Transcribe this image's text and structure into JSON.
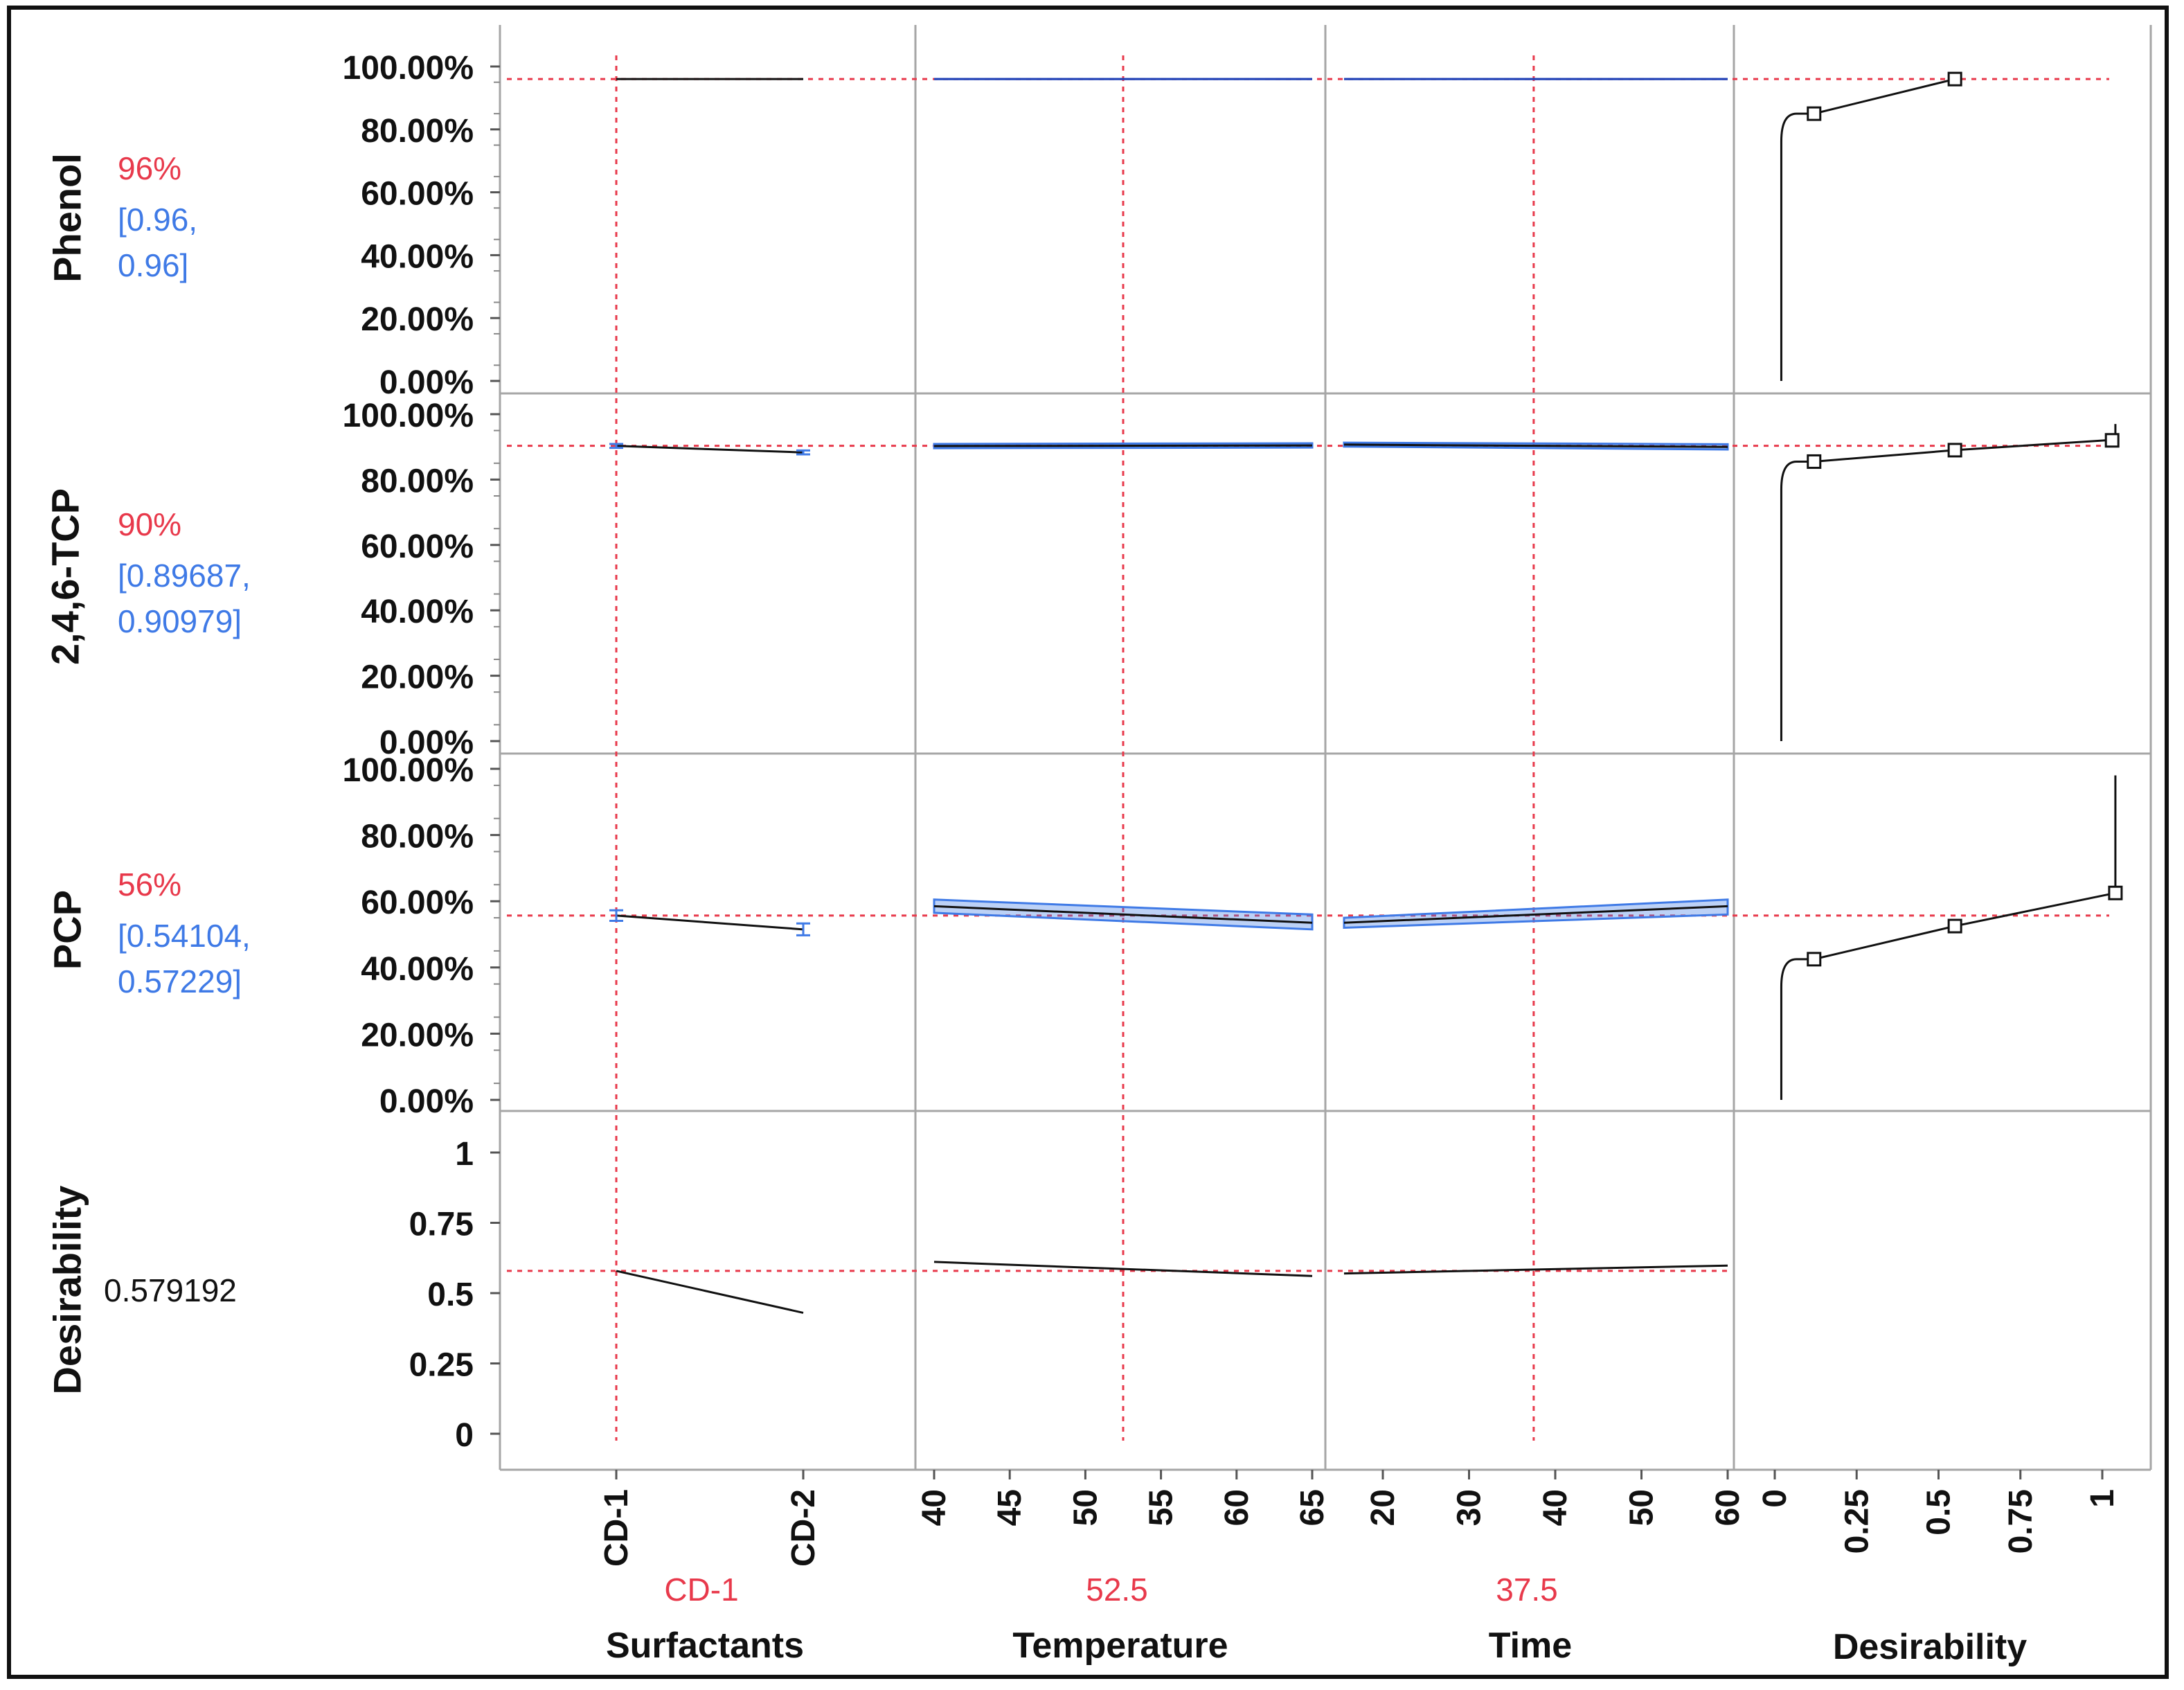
{
  "chart_data": {
    "type": "line",
    "title": "",
    "colors": {
      "prediction_line": "#111111",
      "confidence_band": "#3f7ae6",
      "reference_line": "#e8394b",
      "grid": "#a6a6a6"
    },
    "responses": [
      {
        "name": "Phenol",
        "current_value": "96%",
        "ci_text": [
          "[0.96,",
          "0.96]"
        ],
        "yticks": [
          "100.00%",
          "80.00%",
          "60.00%",
          "40.00%",
          "20.00%",
          "0.00%"
        ],
        "ylim": [
          0,
          1
        ],
        "current": 0.96
      },
      {
        "name": "2,4,6-TCP",
        "current_value": "90%",
        "ci_text": [
          "[0.89687,",
          "0.90979]"
        ],
        "yticks": [
          "100.00%",
          "80.00%",
          "60.00%",
          "40.00%",
          "20.00%",
          "0.00%"
        ],
        "ylim": [
          0,
          1
        ],
        "current": 0.9033
      },
      {
        "name": "PCP",
        "current_value": "56%",
        "ci_text": [
          "[0.54104,",
          "0.57229]"
        ],
        "yticks": [
          "100.00%",
          "80.00%",
          "60.00%",
          "40.00%",
          "20.00%",
          "0.00%"
        ],
        "ylim": [
          0,
          1
        ],
        "current": 0.5567
      },
      {
        "name": "Desirability",
        "current_value": "0.579192",
        "yticks": [
          "1",
          "0.75",
          "0.5",
          "0.25",
          "0"
        ],
        "ylim": [
          -0.15,
          1.12
        ],
        "current": 0.579
      }
    ],
    "factors": [
      {
        "name": "Surfactants",
        "current_label": "CD-1",
        "ticks": [
          "CD-1",
          "CD-2"
        ],
        "current": 0
      },
      {
        "name": "Temperature",
        "current_label": "52.5",
        "ticks": [
          "40",
          "45",
          "50",
          "55",
          "60",
          "65"
        ],
        "xlim": [
          39.5,
          66.2
        ],
        "current": 52.5
      },
      {
        "name": "Time",
        "current_label": "37.5",
        "ticks": [
          "20",
          "30",
          "40",
          "50",
          "60"
        ],
        "xlim": [
          15.5,
          61
        ],
        "current": 37.5
      },
      {
        "name": "Desirability",
        "ticks": [
          "0",
          "0.25",
          "0.5",
          "0.75",
          "1"
        ],
        "xlim": [
          -0.02,
          1.12
        ]
      }
    ],
    "profiles": {
      "Phenol": {
        "Surfactants": {
          "x": [
            "CD-1",
            "CD-2"
          ],
          "y": [
            0.96,
            0.96
          ],
          "ci_low": [
            0.96,
            0.96
          ],
          "ci_high": [
            0.96,
            0.96
          ]
        },
        "Temperature": {
          "x": [
            40,
            65
          ],
          "y": [
            0.96,
            0.96
          ],
          "ci_low": [
            0.96,
            0.96
          ],
          "ci_high": [
            0.96,
            0.96
          ]
        },
        "Time": {
          "x": [
            15.5,
            60
          ],
          "y": [
            0.96,
            0.96
          ],
          "ci_low": [
            0.96,
            0.96
          ],
          "ci_high": [
            0.96,
            0.96
          ]
        }
      },
      "2,4,6-TCP": {
        "Surfactants": {
          "x": [
            "CD-1",
            "CD-2"
          ],
          "y": [
            0.903,
            0.883
          ],
          "err": [
            0.006,
            0.006
          ]
        },
        "Temperature": {
          "x": [
            40,
            65
          ],
          "y": [
            0.9025,
            0.9045
          ],
          "ci_low": [
            0.896,
            0.898
          ],
          "ci_high": [
            0.909,
            0.911
          ]
        },
        "Time": {
          "x": [
            15.5,
            60
          ],
          "y": [
            0.907,
            0.9
          ],
          "ci_low": [
            0.901,
            0.892
          ],
          "ci_high": [
            0.913,
            0.908
          ]
        }
      },
      "PCP": {
        "Surfactants": {
          "x": [
            "CD-1",
            "CD-2"
          ],
          "y": [
            0.5567,
            0.515
          ],
          "err": [
            0.016,
            0.018
          ]
        },
        "Temperature": {
          "x": [
            40,
            65
          ],
          "y": [
            0.585,
            0.535
          ],
          "ci_low": [
            0.565,
            0.515
          ],
          "ci_high": [
            0.605,
            0.56
          ]
        },
        "Time": {
          "x": [
            15.5,
            60
          ],
          "y": [
            0.535,
            0.585
          ],
          "ci_low": [
            0.52,
            0.56
          ],
          "ci_high": [
            0.55,
            0.605
          ]
        }
      },
      "Desirability": {
        "Surfactants": {
          "x": [
            "CD-1",
            "CD-2"
          ],
          "y": [
            0.579,
            0.43
          ]
        },
        "Temperature": {
          "x": [
            40,
            65
          ],
          "y": [
            0.611,
            0.561
          ]
        },
        "Time": {
          "x": [
            15.5,
            60
          ],
          "y": [
            0.57,
            0.598
          ]
        }
      }
    },
    "desirability_functions": {
      "Phenol": {
        "x": [
          0.02,
          0.12,
          0.55
        ],
        "y": [
          0.0,
          0.85,
          0.96
        ],
        "markers": [
          [
            0.12,
            0.85
          ],
          [
            0.55,
            0.96
          ]
        ]
      },
      "2,4,6-TCP": {
        "x": [
          0.02,
          0.12,
          0.55,
          1.01
        ],
        "y": [
          0.0,
          0.855,
          0.89,
          0.92
        ],
        "markers": [
          [
            0.12,
            0.855
          ],
          [
            0.55,
            0.89
          ],
          [
            1.03,
            0.92
          ]
        ]
      },
      "PCP": {
        "x": [
          0.02,
          0.12,
          0.55,
          1.04
        ],
        "y": [
          0.0,
          0.425,
          0.525,
          0.625
        ],
        "markers": [
          [
            0.12,
            0.425
          ],
          [
            0.55,
            0.525
          ],
          [
            1.04,
            0.625
          ]
        ]
      }
    }
  }
}
